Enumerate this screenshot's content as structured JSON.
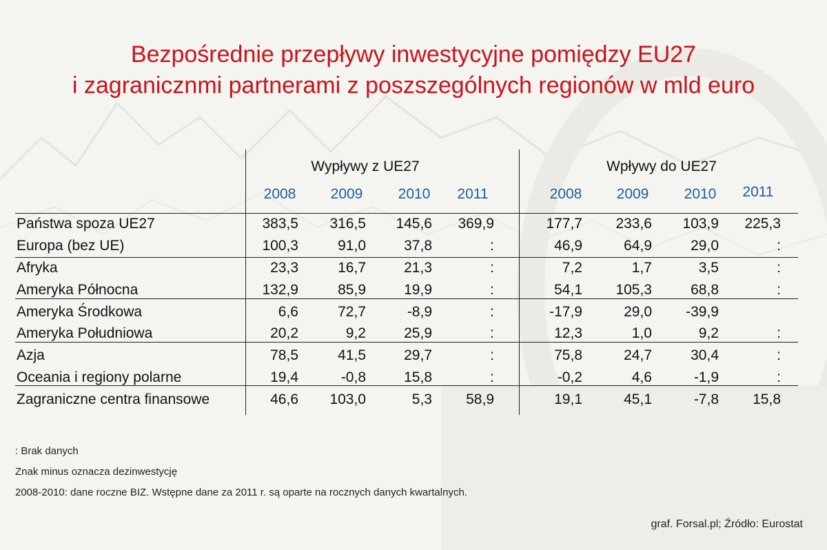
{
  "title": {
    "line1": "Bezpośrednie przepływy inwestycyjne pomiędzy EU27",
    "line2": "i zagranicznmi partnerami z poszszególnych regionów w mld euro"
  },
  "chart_data": {
    "type": "table",
    "groups": [
      "Wypływy z UE27",
      "Wpływy do UE27"
    ],
    "years": [
      "2008",
      "2009",
      "2010",
      "2011"
    ],
    "rows": [
      {
        "label": "Państwa spoza UE27",
        "out": [
          "383,5",
          "316,5",
          "145,6",
          "369,9"
        ],
        "in": [
          "177,7",
          "233,6",
          "103,9",
          "225,3"
        ]
      },
      {
        "label": "Europa (bez UE)",
        "out": [
          "100,3",
          "91,0",
          "37,8",
          ":"
        ],
        "in": [
          "46,9",
          "64,9",
          "29,0",
          ":"
        ]
      },
      {
        "label": "Afryka",
        "out": [
          "23,3",
          "16,7",
          "21,3",
          ":"
        ],
        "in": [
          "7,2",
          "1,7",
          "3,5",
          ":"
        ]
      },
      {
        "label": "Ameryka Północna",
        "out": [
          "132,9",
          "85,9",
          "19,9",
          ":"
        ],
        "in": [
          "54,1",
          "105,3",
          "68,8",
          ":"
        ]
      },
      {
        "label": "Ameryka Środkowa",
        "out": [
          "6,6",
          "72,7",
          "-8,9",
          ":"
        ],
        "in": [
          "-17,9",
          "29,0",
          "-39,9",
          ""
        ]
      },
      {
        "label": "Ameryka Południowa",
        "out": [
          "20,2",
          "9,2",
          "25,9",
          ":"
        ],
        "in": [
          "12,3",
          "1,0",
          "9,2",
          ":"
        ]
      },
      {
        "label": "Azja",
        "out": [
          "78,5",
          "41,5",
          "29,7",
          ":"
        ],
        "in": [
          "75,8",
          "24,7",
          "30,4",
          ":"
        ]
      },
      {
        "label": "Oceania i regiony polarne",
        "out": [
          "19,4",
          "-0,8",
          "15,8",
          ":"
        ],
        "in": [
          "-0,2",
          "4,6",
          "-1,9",
          ":"
        ]
      },
      {
        "label": "Zagraniczne centra finansowe",
        "out": [
          "46,6",
          "103,0",
          "5,3",
          "58,9"
        ],
        "in": [
          "19,1",
          "45,1",
          "-7,8",
          "15,8"
        ]
      }
    ]
  },
  "notes": [
    ": Brak danych",
    "Znak minus oznacza dezinwestycję",
    "2008-2010: dane roczne BIZ. Wstępne dane za 2011 r. są oparte na rocznych danych kwartalnych."
  ],
  "source": "graf. Forsal.pl; Źródło: Eurostat",
  "colors": {
    "title": "#c8141a",
    "years": "#1f5f9e"
  }
}
